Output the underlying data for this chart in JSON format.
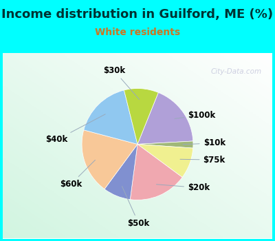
{
  "title": "Income distribution in Guilford, ME (%)",
  "subtitle": "White residents",
  "title_color": "#003333",
  "subtitle_color": "#cc7722",
  "background_color": "#00ffff",
  "watermark": "City-Data.com",
  "slices": [
    {
      "label": "$100k",
      "value": 18,
      "color": "#b0a0d8"
    },
    {
      "label": "$10k",
      "value": 2,
      "color": "#a0b878"
    },
    {
      "label": "$75k",
      "value": 9,
      "color": "#f0f090"
    },
    {
      "label": "$20k",
      "value": 17,
      "color": "#f0a8b0"
    },
    {
      "label": "$50k",
      "value": 8,
      "color": "#8090d0"
    },
    {
      "label": "$60k",
      "value": 19,
      "color": "#f8c898"
    },
    {
      "label": "$40k",
      "value": 17,
      "color": "#90c8f0"
    },
    {
      "label": "$30k",
      "value": 10,
      "color": "#b8d840"
    }
  ],
  "label_color": "#000000",
  "label_fontsize": 8.5,
  "title_fontsize": 13,
  "subtitle_fontsize": 10,
  "startangle": 68
}
